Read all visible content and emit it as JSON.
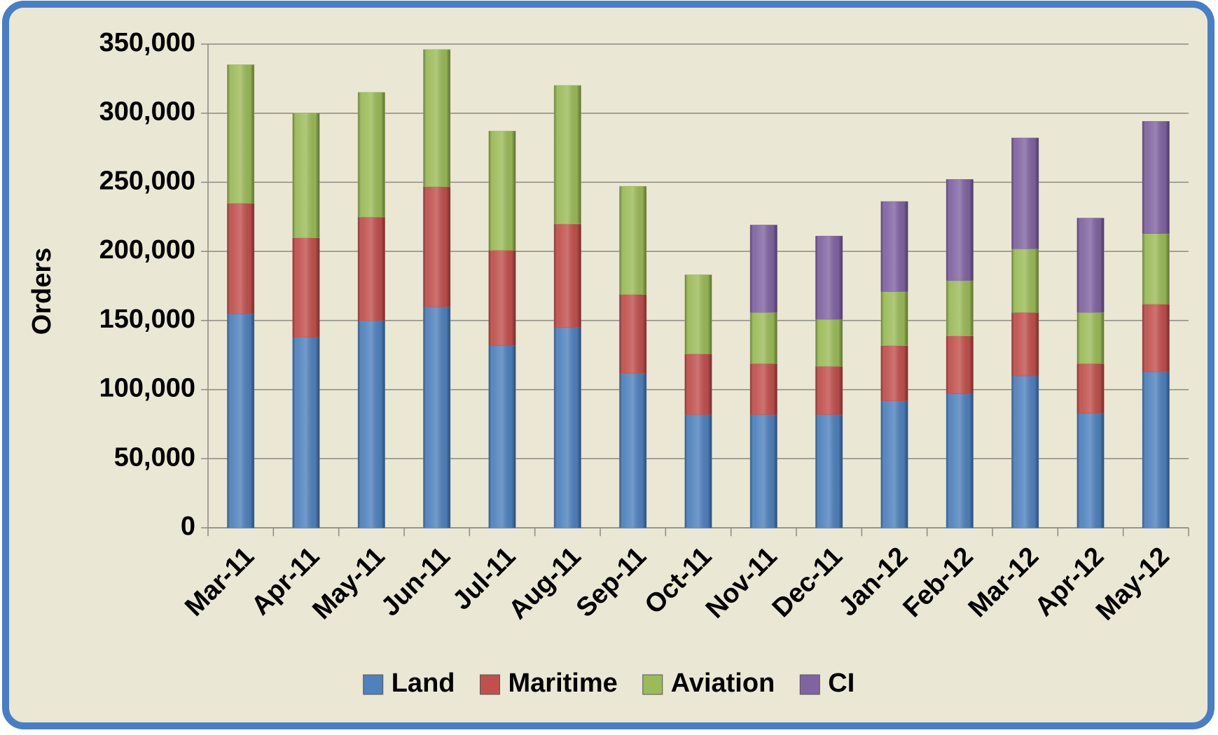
{
  "chart_data": {
    "type": "stacked_bar",
    "y_label": "Orders",
    "categories": [
      "Mar-11",
      "Apr-11",
      "May-11",
      "Jun-11",
      "Jul-11",
      "Aug-11",
      "Sep-11",
      "Oct-11",
      "Nov-11",
      "Dec-11",
      "Jan-12",
      "Feb-12",
      "Mar-12",
      "Apr-12",
      "May-12"
    ],
    "series": [
      {
        "name": "Land",
        "color": "#4f81bd",
        "values": [
          155000,
          138000,
          150000,
          160000,
          132000,
          145000,
          112000,
          82000,
          82000,
          82000,
          92000,
          97000,
          110000,
          83000,
          113000
        ]
      },
      {
        "name": "Maritime",
        "color": "#c0504d",
        "values": [
          80000,
          72000,
          75000,
          87000,
          69000,
          75000,
          57000,
          44000,
          37000,
          35000,
          40000,
          42000,
          46000,
          36000,
          49000
        ]
      },
      {
        "name": "Aviation",
        "color": "#9bbb59",
        "values": [
          100000,
          90000,
          90000,
          99000,
          86000,
          100000,
          78000,
          57000,
          37000,
          34000,
          39000,
          40000,
          46000,
          37000,
          51000
        ]
      },
      {
        "name": "CI",
        "color": "#8064a2",
        "values": [
          null,
          null,
          null,
          null,
          null,
          null,
          null,
          null,
          63000,
          60000,
          65000,
          73000,
          80000,
          68000,
          81000
        ]
      }
    ],
    "ylim": [
      0,
      350000
    ],
    "yticks": [
      {
        "value": 0,
        "label": "0"
      },
      {
        "value": 50000,
        "label": "50,000"
      },
      {
        "value": 100000,
        "label": "100,000"
      },
      {
        "value": 150000,
        "label": "150,000"
      },
      {
        "value": 200000,
        "label": "200,000"
      },
      {
        "value": 250000,
        "label": "250,000"
      },
      {
        "value": 300000,
        "label": "300,000"
      },
      {
        "value": 350000,
        "label": "350,000"
      }
    ],
    "grid": true,
    "legend": "bottom"
  }
}
